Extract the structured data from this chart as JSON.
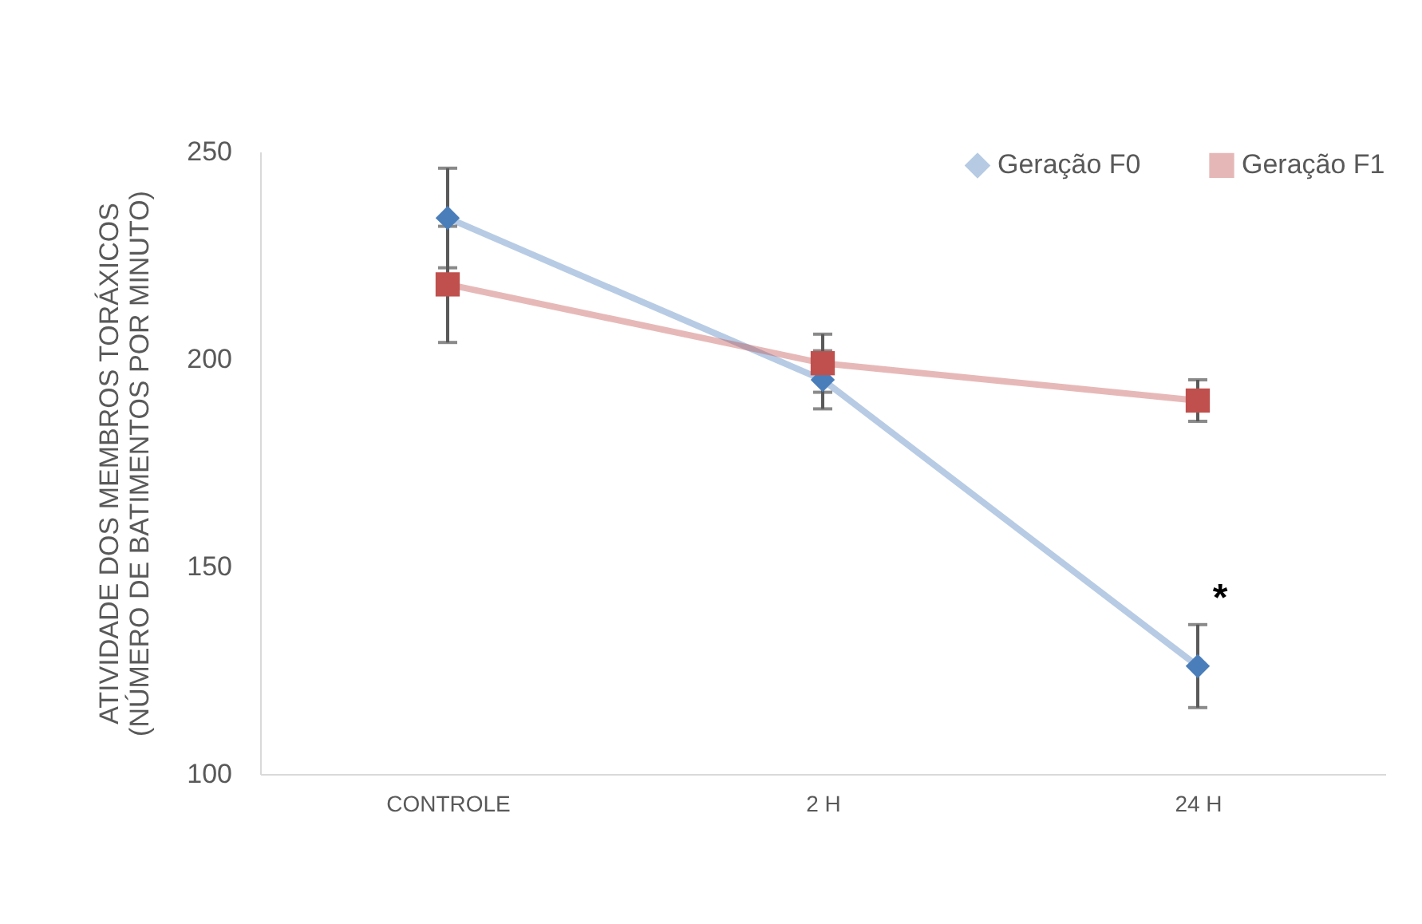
{
  "chart_data": {
    "type": "line",
    "ylabel": "ATIVIDADE DOS MEMBROS TORÁXICOS\n(NÚMERO DE BATIMENTOS POR MINUTO)",
    "categories": [
      "CONTROLE",
      "2 H",
      "24 H"
    ],
    "series": [
      {
        "name": "Geração F0",
        "color": "#4a7ebb",
        "marker": "diamond",
        "values": [
          234,
          195,
          126
        ],
        "errors": [
          12,
          7,
          10
        ]
      },
      {
        "name": "Geração F1",
        "color": "#c0504d",
        "marker": "square",
        "values": [
          218,
          199,
          190
        ],
        "errors": [
          14,
          7,
          5
        ]
      }
    ],
    "ylim": [
      100,
      250
    ],
    "yticks": [
      100,
      150,
      200,
      250
    ],
    "grid": false,
    "legend": "top right",
    "annotations": [
      "*"
    ]
  }
}
